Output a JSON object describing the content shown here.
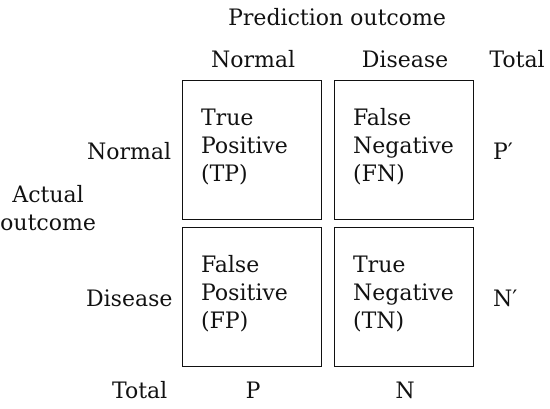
{
  "header": {
    "prediction_outcome": "Prediction outcome",
    "col_normal": "Normal",
    "col_disease": "Disease",
    "col_total": "Total"
  },
  "rows": {
    "actual_outcome_line1": "Actual",
    "actual_outcome_line2": "outcome",
    "row_normal": "Normal",
    "row_disease": "Disease",
    "row_total": "Total"
  },
  "cells": {
    "tp": [
      "True",
      "Positive",
      "(TP)"
    ],
    "fn": [
      "False",
      "Negative",
      "(FN)"
    ],
    "fp": [
      "False",
      "Positive",
      "(FP)"
    ],
    "tn": [
      "True",
      "Negative",
      "(TN)"
    ]
  },
  "totals": {
    "p_prime": "P′",
    "n_prime": "N′",
    "p": "P",
    "n": "N"
  }
}
